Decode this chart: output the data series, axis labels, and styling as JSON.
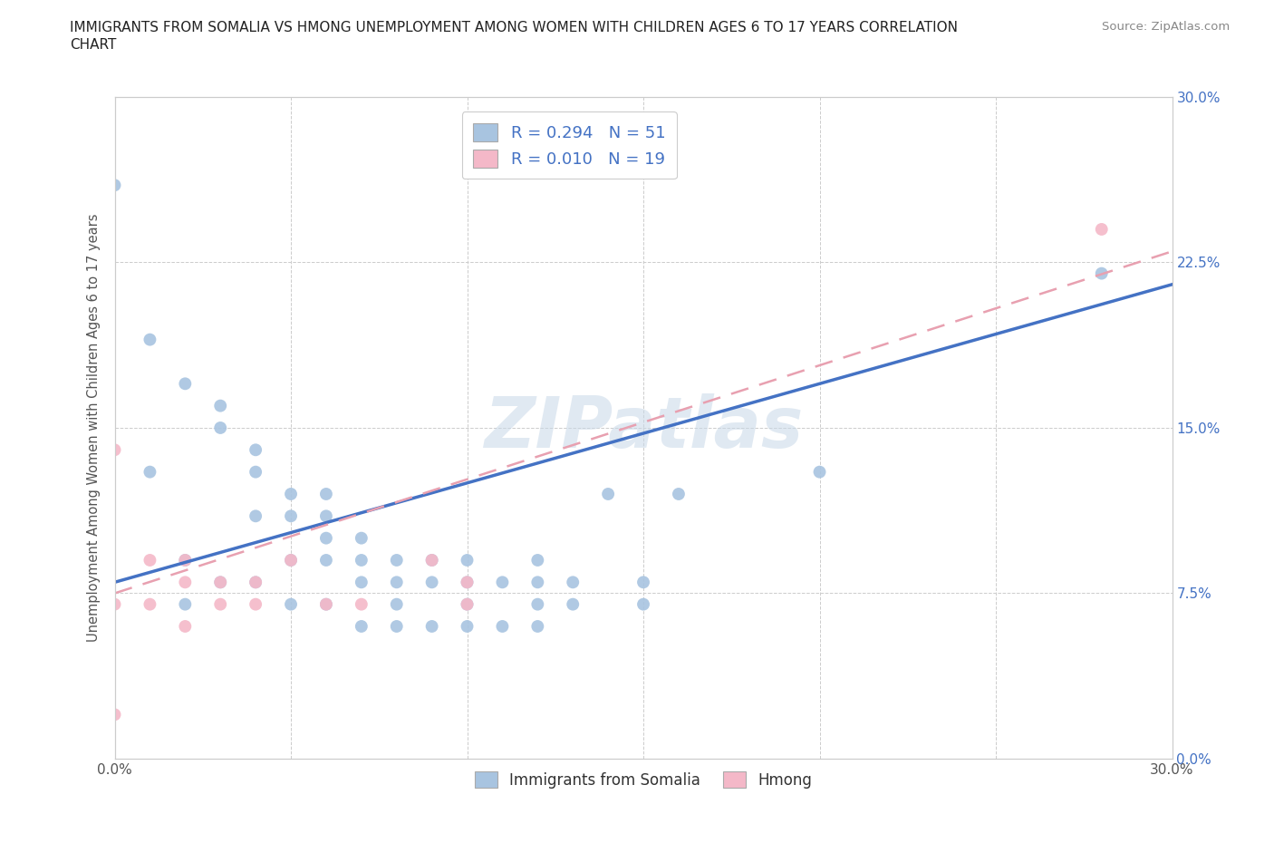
{
  "title_line1": "IMMIGRANTS FROM SOMALIA VS HMONG UNEMPLOYMENT AMONG WOMEN WITH CHILDREN AGES 6 TO 17 YEARS CORRELATION",
  "title_line2": "CHART",
  "source": "Source: ZipAtlas.com",
  "ylabel": "Unemployment Among Women with Children Ages 6 to 17 years",
  "xlim": [
    0.0,
    0.3
  ],
  "ylim": [
    0.0,
    0.3
  ],
  "xticks": [
    0.0,
    0.05,
    0.1,
    0.15,
    0.2,
    0.25,
    0.3
  ],
  "yticks": [
    0.0,
    0.075,
    0.15,
    0.225,
    0.3
  ],
  "xticklabels": [
    "0.0%",
    "",
    "",
    "",
    "",
    "",
    "30.0%"
  ],
  "right_yticklabels": [
    "0.0%",
    "7.5%",
    "15.0%",
    "22.5%",
    "30.0%"
  ],
  "somalia_color": "#a8c4e0",
  "hmong_color": "#f4b8c8",
  "somalia_R": 0.294,
  "somalia_N": 51,
  "hmong_R": 0.01,
  "hmong_N": 19,
  "trend_somalia_color": "#4472c4",
  "trend_hmong_color": "#e8a0b0",
  "watermark": "ZIPatlas",
  "legend_label_somalia": "Immigrants from Somalia",
  "legend_label_hmong": "Hmong",
  "right_ytick_color": "#4472c4",
  "somalia_x": [
    0.0,
    0.01,
    0.01,
    0.02,
    0.02,
    0.02,
    0.03,
    0.03,
    0.03,
    0.04,
    0.04,
    0.04,
    0.04,
    0.05,
    0.05,
    0.05,
    0.05,
    0.06,
    0.06,
    0.06,
    0.06,
    0.06,
    0.07,
    0.07,
    0.07,
    0.07,
    0.08,
    0.08,
    0.08,
    0.08,
    0.09,
    0.09,
    0.09,
    0.1,
    0.1,
    0.1,
    0.1,
    0.11,
    0.11,
    0.12,
    0.12,
    0.12,
    0.12,
    0.13,
    0.13,
    0.14,
    0.15,
    0.15,
    0.16,
    0.2,
    0.28
  ],
  "somalia_y": [
    0.26,
    0.19,
    0.13,
    0.17,
    0.09,
    0.07,
    0.16,
    0.15,
    0.08,
    0.14,
    0.13,
    0.11,
    0.08,
    0.12,
    0.11,
    0.09,
    0.07,
    0.12,
    0.11,
    0.1,
    0.09,
    0.07,
    0.1,
    0.09,
    0.08,
    0.06,
    0.09,
    0.08,
    0.07,
    0.06,
    0.09,
    0.08,
    0.06,
    0.09,
    0.08,
    0.07,
    0.06,
    0.08,
    0.06,
    0.09,
    0.08,
    0.07,
    0.06,
    0.08,
    0.07,
    0.12,
    0.08,
    0.07,
    0.12,
    0.13,
    0.22
  ],
  "hmong_x": [
    0.0,
    0.0,
    0.0,
    0.01,
    0.01,
    0.02,
    0.02,
    0.02,
    0.03,
    0.03,
    0.04,
    0.04,
    0.05,
    0.06,
    0.07,
    0.09,
    0.1,
    0.1,
    0.28
  ],
  "hmong_y": [
    0.14,
    0.07,
    0.02,
    0.09,
    0.07,
    0.09,
    0.08,
    0.06,
    0.08,
    0.07,
    0.08,
    0.07,
    0.09,
    0.07,
    0.07,
    0.09,
    0.08,
    0.07,
    0.24
  ],
  "somalia_trend_x": [
    0.0,
    0.3
  ],
  "somalia_trend_y": [
    0.08,
    0.215
  ],
  "hmong_trend_x": [
    0.0,
    0.3
  ],
  "hmong_trend_y": [
    0.075,
    0.23
  ]
}
